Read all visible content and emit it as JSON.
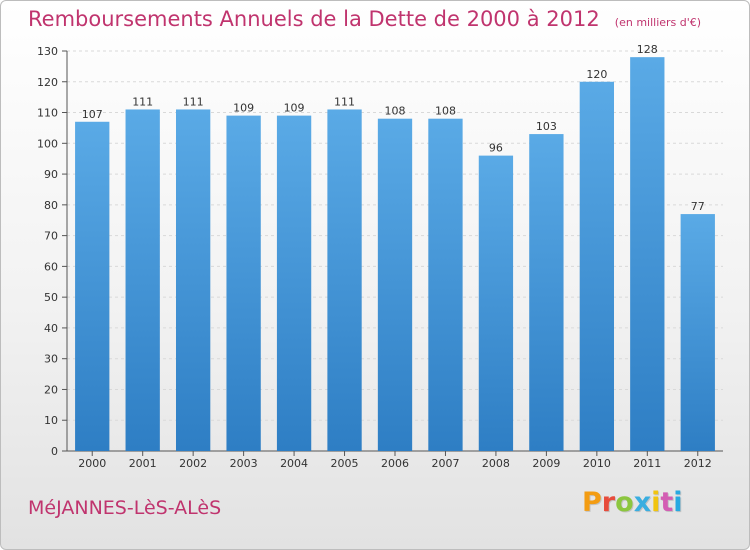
{
  "header": {
    "title": "Remboursements Annuels de la Dette de 2000 à 2012",
    "unit": "(en milliers d'€)"
  },
  "footer": {
    "commune": "MéJANNES-LèS-ALèS",
    "brand": "Proxiti",
    "brand_colors": [
      "#f39c12",
      "#e74c3c",
      "#8cc63f",
      "#3aaee0",
      "#f1c40f",
      "#d35db3",
      "#27a9e1"
    ]
  },
  "chart_data": {
    "type": "bar",
    "categories": [
      "2000",
      "2001",
      "2002",
      "2003",
      "2004",
      "2005",
      "2006",
      "2007",
      "2008",
      "2009",
      "2010",
      "2011",
      "2012"
    ],
    "values": [
      107,
      111,
      111,
      109,
      109,
      111,
      108,
      108,
      96,
      103,
      120,
      128,
      77
    ],
    "ylim": [
      0,
      130
    ],
    "ytick_step": 10,
    "grid": true,
    "bar_color_top": "#5aaae6",
    "bar_color_bottom": "#2e7ec4",
    "show_value_labels": true
  }
}
